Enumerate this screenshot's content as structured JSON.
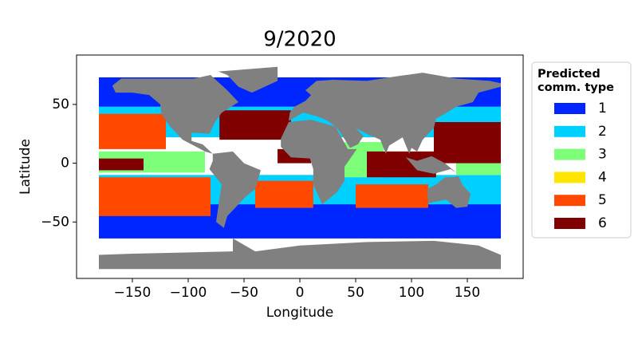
{
  "chart_data": {
    "type": "map",
    "title": "9/2020",
    "x_label": "Longitude",
    "y_label": "Latitude",
    "xlim": [
      -200,
      200
    ],
    "ylim": [
      -98,
      92
    ],
    "xticks": [
      {
        "value": -150,
        "label": "−150"
      },
      {
        "value": -100,
        "label": "−100"
      },
      {
        "value": -50,
        "label": "−50"
      },
      0,
      50,
      100,
      150
    ],
    "yticks": [
      {
        "value": -50,
        "label": "−50"
      },
      0,
      50
    ],
    "legend_title": "Predicted\ncomm. type",
    "legend_position": "outside right",
    "classes": [
      {
        "name": "1",
        "color": "#0026ff"
      },
      {
        "name": "2",
        "color": "#00d0ff"
      },
      {
        "name": "3",
        "color": "#7dff7a"
      },
      {
        "name": "4",
        "color": "#ffe500"
      },
      {
        "name": "5",
        "color": "#ff4800"
      },
      {
        "name": "6",
        "color": "#800000"
      }
    ],
    "land_color": "#808080"
  }
}
